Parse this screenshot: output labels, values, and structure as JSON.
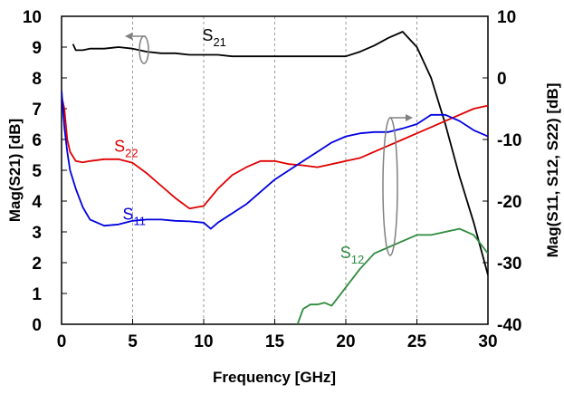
{
  "chart_data": {
    "type": "line",
    "xlabel": "Frequency [GHz]",
    "ylabel_left": "Mag(S21) [dB]",
    "ylabel_right": "Mag(S11, S12, S22) [dB]",
    "xlim": [
      0,
      30
    ],
    "ylim_left": [
      0,
      10
    ],
    "ylim_right": [
      -40,
      10
    ],
    "x_ticks": [
      "0",
      "5",
      "10",
      "15",
      "20",
      "25",
      "30"
    ],
    "y_ticks_left": [
      "0",
      "1",
      "2",
      "3",
      "4",
      "5",
      "6",
      "7",
      "8",
      "9",
      "10"
    ],
    "y_ticks_right": [
      "-40",
      "-30",
      "-20",
      "-10",
      "0",
      "10"
    ],
    "grid": "vertical dashed",
    "series": [
      {
        "name": "S21",
        "name_main": "S",
        "name_sub": "21",
        "axis": "left",
        "color": "#000000",
        "x": [
          0.8,
          1.0,
          1.5,
          2,
          3,
          4,
          5,
          6,
          7,
          8,
          9,
          10,
          11,
          12,
          13,
          14,
          15,
          16,
          17,
          18,
          19,
          20,
          21,
          22,
          23,
          24,
          25,
          26,
          27,
          28,
          29,
          30
        ],
        "y": [
          9.1,
          8.9,
          8.9,
          8.95,
          8.95,
          9.0,
          8.95,
          8.85,
          8.8,
          8.8,
          8.75,
          8.75,
          8.75,
          8.7,
          8.7,
          8.7,
          8.7,
          8.7,
          8.7,
          8.7,
          8.7,
          8.7,
          8.85,
          9.05,
          9.3,
          9.5,
          9.0,
          8.0,
          6.5,
          4.8,
          3.3,
          1.6
        ]
      },
      {
        "name": "S22",
        "name_main": "S",
        "name_sub": "22",
        "axis": "right",
        "color": "#e00000",
        "x": [
          0,
          0.2,
          0.4,
          0.6,
          1,
          1.5,
          2,
          3,
          4,
          5,
          6,
          7,
          8,
          9,
          10,
          11,
          12,
          13,
          14,
          15,
          16,
          17,
          18,
          19,
          20,
          21,
          22,
          23,
          24,
          25,
          26,
          27,
          28,
          29,
          30
        ],
        "y": [
          -3,
          -5,
          -10,
          -12,
          -13.5,
          -13.7,
          -13.5,
          -13.2,
          -13.2,
          -13.8,
          -15.5,
          -17.5,
          -19.5,
          -21.2,
          -20.8,
          -18.0,
          -15.8,
          -14.5,
          -13.5,
          -13.5,
          -14.0,
          -14.2,
          -14.5,
          -14.0,
          -13.5,
          -13.0,
          -12.0,
          -11.0,
          -10.0,
          -9.0,
          -8.0,
          -7.0,
          -6.0,
          -5.0,
          -4.5
        ]
      },
      {
        "name": "S11",
        "name_main": "S",
        "name_sub": "11",
        "axis": "right",
        "color": "#0000e0",
        "x": [
          0,
          0.2,
          0.4,
          0.6,
          1,
          1.5,
          2,
          3,
          4,
          5,
          6,
          7,
          8,
          9,
          10,
          10.5,
          11,
          12,
          13,
          14,
          15,
          16,
          17,
          18,
          19,
          20,
          21,
          22,
          23,
          24,
          25,
          26,
          27,
          28,
          29,
          30
        ],
        "y": [
          -2,
          -8,
          -12,
          -15,
          -18,
          -21,
          -23,
          -24,
          -23.8,
          -23.2,
          -23.0,
          -23.0,
          -23.2,
          -23.3,
          -23.5,
          -24.5,
          -23.5,
          -22.0,
          -20.5,
          -18.5,
          -16.5,
          -15.0,
          -13.5,
          -12.0,
          -10.5,
          -9.5,
          -9.0,
          -8.8,
          -8.8,
          -8.2,
          -7.5,
          -6.0,
          -6.0,
          -7.0,
          -8.5,
          -9.5
        ]
      },
      {
        "name": "S12",
        "name_main": "S",
        "name_sub": "12",
        "axis": "right",
        "color": "#2e8b3e",
        "x": [
          16.6,
          17,
          17.5,
          18,
          18.5,
          19,
          19.5,
          20,
          21,
          22,
          23,
          24,
          25,
          26,
          27,
          28,
          29,
          30
        ],
        "y": [
          -40,
          -37.5,
          -36.8,
          -36.8,
          -36.5,
          -37.0,
          -35.5,
          -34.0,
          -31.0,
          -28.5,
          -27.5,
          -26.5,
          -25.5,
          -25.5,
          -25.0,
          -24.5,
          -25.5,
          -28.5
        ]
      }
    ],
    "series_labels": [
      {
        "series": 0,
        "x": 9.9,
        "y": 9.2,
        "axis": "left"
      },
      {
        "series": 1,
        "x": 3.7,
        "y": -12.0,
        "axis": "right"
      },
      {
        "series": 2,
        "x": 4.3,
        "y": -23.0,
        "axis": "right"
      },
      {
        "series": 3,
        "x": 19.6,
        "y": -29.3,
        "axis": "right"
      }
    ]
  }
}
